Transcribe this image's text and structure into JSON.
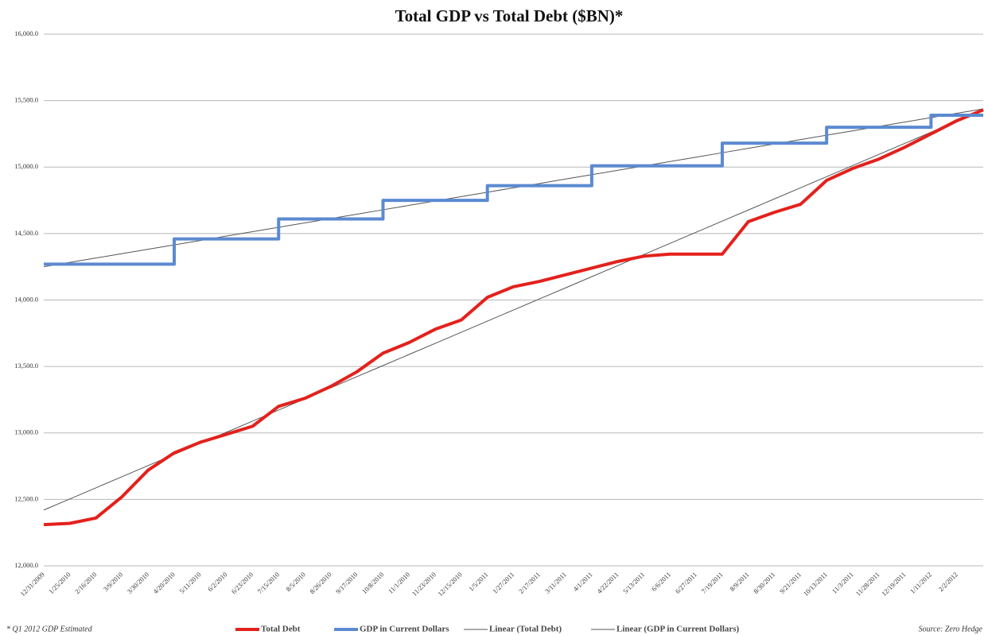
{
  "chart_data": {
    "type": "line",
    "title": "Total GDP vs Total Debt ($BN)*",
    "categories": [
      "12/31/2009",
      "1/25/2010",
      "2/16/2010",
      "3/9/2010",
      "3/30/2010",
      "4/20/2010",
      "5/11/2010",
      "6/2/2010",
      "6/23/2010",
      "7/15/2010",
      "8/5/2010",
      "8/26/2010",
      "9/17/2010",
      "10/8/2010",
      "11/1/2010",
      "11/23/2010",
      "12/15/2010",
      "1/5/2011",
      "1/27/2011",
      "2/17/2011",
      "3/11/2011",
      "4/1/2011",
      "4/22/2011",
      "5/13/2011",
      "6/6/2011",
      "6/27/2011",
      "7/19/2011",
      "8/9/2011",
      "8/30/2011",
      "9/21/2011",
      "10/13/2011",
      "11/3/2011",
      "11/28/2011",
      "12/19/2011",
      "1/11/2012",
      "2/2/2012",
      null
    ],
    "series": [
      {
        "name": "Total Debt",
        "color": "#e3211c",
        "width": 4,
        "values": [
          12310,
          12320,
          12360,
          12520,
          12720,
          12850,
          12930,
          12990,
          13050,
          13200,
          13260,
          13350,
          13460,
          13600,
          13680,
          13780,
          13850,
          14020,
          14100,
          14140,
          14190,
          14240,
          14290,
          14330,
          14345,
          14345,
          14345,
          14590,
          14660,
          14720,
          14900,
          14990,
          15060,
          15150,
          15250,
          15350,
          15430
        ]
      },
      {
        "name": "GDP in Current Dollars",
        "color": "#5b8ad0",
        "width": 4,
        "step": true,
        "values": [
          14270,
          14270,
          14270,
          14270,
          14270,
          14460,
          14460,
          14460,
          14460,
          14610,
          14610,
          14610,
          14610,
          14750,
          14750,
          14750,
          14750,
          14860,
          14860,
          14860,
          14860,
          15010,
          15010,
          15010,
          15010,
          15010,
          15180,
          15180,
          15180,
          15180,
          15300,
          15300,
          15300,
          15300,
          15390,
          15390,
          15390
        ]
      },
      {
        "name": "Linear (Total Debt)",
        "color": "#555555",
        "width": 1,
        "values": [
          12420,
          12503.6,
          12587.2,
          12670.8,
          12754.4,
          12838,
          12921.6,
          13005.2,
          13088.8,
          13172.4,
          13256,
          13339.6,
          13423.2,
          13506.8,
          13590.4,
          13674,
          13757.6,
          13841.2,
          13924.8,
          14008.4,
          14092,
          14175.6,
          14259.2,
          14342.8,
          14426.4,
          14510,
          14593.6,
          14677.2,
          14760.8,
          14844.4,
          14928,
          15011.6,
          15095.2,
          15178.8,
          15262.4,
          15346,
          15429.6
        ]
      },
      {
        "name": "Linear (GDP in Current Dollars)",
        "color": "#555555",
        "width": 1,
        "values": [
          14250,
          14283,
          14316,
          14349,
          14382,
          14415,
          14448,
          14481,
          14514,
          14547,
          14580,
          14613,
          14646,
          14679,
          14712,
          14745,
          14778,
          14811,
          14844,
          14877,
          14910,
          14943,
          14976,
          15009,
          15042,
          15075,
          15108,
          15141,
          15174,
          15207,
          15240,
          15273,
          15306,
          15339,
          15372,
          15405,
          15438
        ]
      }
    ],
    "ylim": [
      12000,
      16000
    ],
    "yticks": [
      {
        "value": 12000,
        "label": "12,000.0"
      },
      {
        "value": 12500,
        "label": "12,500.0"
      },
      {
        "value": 13000,
        "label": "13,000.0"
      },
      {
        "value": 13500,
        "label": "13,500.0"
      },
      {
        "value": 14000,
        "label": "14,000.0"
      },
      {
        "value": 14500,
        "label": "14,500.0"
      },
      {
        "value": 15000,
        "label": "15,000.0"
      },
      {
        "value": 15500,
        "label": "15,500.0"
      },
      {
        "value": 16000,
        "label": "16,000.0"
      }
    ],
    "grid": true,
    "legend": "bottom",
    "footnote": "* Q1 2012 GDP Estimated",
    "source": "Source: Zero Hedge"
  }
}
